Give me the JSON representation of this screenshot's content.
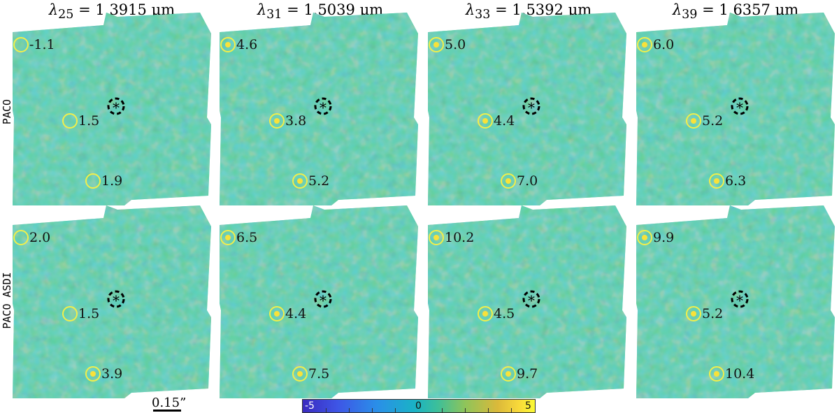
{
  "columns": [
    {
      "subscript": "25",
      "value": "1.3915",
      "unit": "µm"
    },
    {
      "subscript": "31",
      "value": "1.5039",
      "unit": "µm"
    },
    {
      "subscript": "33",
      "value": "1.5392",
      "unit": "µm"
    },
    {
      "subscript": "39",
      "value": "1.6357",
      "unit": "µm"
    }
  ],
  "rows": [
    {
      "label": "PACO"
    },
    {
      "label": "PACO ASDI"
    }
  ],
  "star_label": "*",
  "snr_values": {
    "PACO": [
      [
        "-1.1",
        "1.5",
        "1.9"
      ],
      [
        "4.6",
        "3.8",
        "5.2"
      ],
      [
        "5.0",
        "4.4",
        "7.0"
      ],
      [
        "6.0",
        "5.2",
        "6.3"
      ]
    ],
    "PACO ASDI": [
      [
        "2.0",
        "1.5",
        "3.9"
      ],
      [
        "6.5",
        "4.4",
        "7.5"
      ],
      [
        "10.2",
        "4.5",
        "9.7"
      ],
      [
        "9.9",
        "5.2",
        "10.4"
      ]
    ]
  },
  "scalebar": {
    "label": "0.15”"
  },
  "colorbar": {
    "min_label": "-5",
    "mid_label": "0",
    "max_label": "5",
    "range": [
      -5,
      5
    ],
    "colormap": "parula"
  },
  "colors": {
    "circle": "#f2ef4a",
    "star_marker": "#000000",
    "background_map": "#3dbaa0"
  }
}
